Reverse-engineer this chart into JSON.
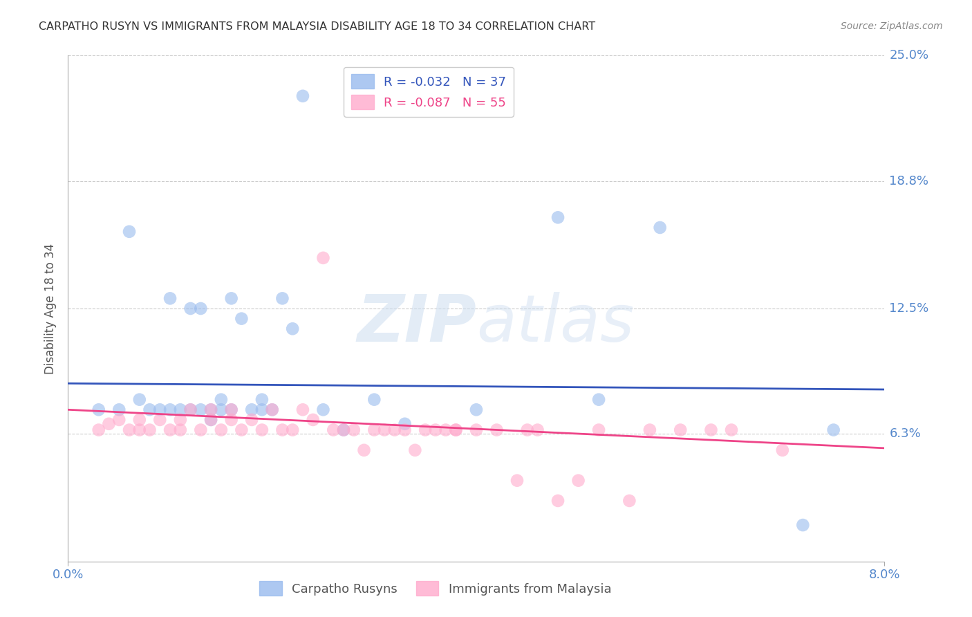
{
  "title": "CARPATHO RUSYN VS IMMIGRANTS FROM MALAYSIA DISABILITY AGE 18 TO 34 CORRELATION CHART",
  "source": "Source: ZipAtlas.com",
  "ylabel_label": "Disability Age 18 to 34",
  "xlim": [
    0.0,
    0.08
  ],
  "ylim": [
    0.0,
    0.25
  ],
  "blue_R": "-0.032",
  "blue_N": "37",
  "pink_R": "-0.087",
  "pink_N": "55",
  "legend_label_blue": "Carpatho Rusyns",
  "legend_label_pink": "Immigrants from Malaysia",
  "blue_color": "#99BBEE",
  "pink_color": "#FFAACC",
  "line_blue": "#3355BB",
  "line_pink": "#EE4488",
  "blue_scatter_x": [
    0.003,
    0.005,
    0.006,
    0.007,
    0.008,
    0.009,
    0.01,
    0.01,
    0.011,
    0.012,
    0.012,
    0.013,
    0.013,
    0.014,
    0.014,
    0.015,
    0.015,
    0.016,
    0.016,
    0.017,
    0.018,
    0.019,
    0.019,
    0.02,
    0.021,
    0.022,
    0.023,
    0.025,
    0.027,
    0.03,
    0.033,
    0.04,
    0.048,
    0.052,
    0.058,
    0.072,
    0.075
  ],
  "blue_scatter_y": [
    0.075,
    0.075,
    0.163,
    0.08,
    0.075,
    0.075,
    0.13,
    0.075,
    0.075,
    0.075,
    0.125,
    0.125,
    0.075,
    0.07,
    0.075,
    0.075,
    0.08,
    0.13,
    0.075,
    0.12,
    0.075,
    0.075,
    0.08,
    0.075,
    0.13,
    0.115,
    0.23,
    0.075,
    0.065,
    0.08,
    0.068,
    0.075,
    0.17,
    0.08,
    0.165,
    0.018,
    0.065
  ],
  "pink_scatter_x": [
    0.003,
    0.004,
    0.005,
    0.006,
    0.007,
    0.007,
    0.008,
    0.009,
    0.01,
    0.011,
    0.011,
    0.012,
    0.013,
    0.014,
    0.014,
    0.015,
    0.016,
    0.016,
    0.017,
    0.018,
    0.019,
    0.02,
    0.021,
    0.022,
    0.023,
    0.024,
    0.025,
    0.026,
    0.027,
    0.028,
    0.029,
    0.03,
    0.031,
    0.032,
    0.033,
    0.034,
    0.035,
    0.036,
    0.037,
    0.038,
    0.04,
    0.042,
    0.045,
    0.046,
    0.05,
    0.052,
    0.055,
    0.057,
    0.06,
    0.063,
    0.065,
    0.07,
    0.038,
    0.044,
    0.048
  ],
  "pink_scatter_y": [
    0.065,
    0.068,
    0.07,
    0.065,
    0.07,
    0.065,
    0.065,
    0.07,
    0.065,
    0.065,
    0.07,
    0.075,
    0.065,
    0.07,
    0.075,
    0.065,
    0.07,
    0.075,
    0.065,
    0.07,
    0.065,
    0.075,
    0.065,
    0.065,
    0.075,
    0.07,
    0.15,
    0.065,
    0.065,
    0.065,
    0.055,
    0.065,
    0.065,
    0.065,
    0.065,
    0.055,
    0.065,
    0.065,
    0.065,
    0.065,
    0.065,
    0.065,
    0.065,
    0.065,
    0.04,
    0.065,
    0.03,
    0.065,
    0.065,
    0.065,
    0.065,
    0.055,
    0.065,
    0.04,
    0.03
  ],
  "blue_trendline_x": [
    0.0,
    0.08
  ],
  "blue_trendline_y": [
    0.088,
    0.085
  ],
  "pink_trendline_x": [
    0.0,
    0.08
  ],
  "pink_trendline_y": [
    0.075,
    0.056
  ],
  "watermark_zip": "ZIP",
  "watermark_atlas": "atlas",
  "grid_color": "#CCCCCC",
  "title_color": "#333333",
  "tick_label_color": "#5588CC",
  "axis_color": "#AAAAAA",
  "background_color": "#FFFFFF",
  "ytick_positions": [
    0.063,
    0.125,
    0.188,
    0.25
  ],
  "ytick_labels": [
    "6.3%",
    "12.5%",
    "18.8%",
    "25.0%"
  ],
  "xtick_positions": [
    0.0,
    0.08
  ],
  "xtick_labels": [
    "0.0%",
    "8.0%"
  ]
}
